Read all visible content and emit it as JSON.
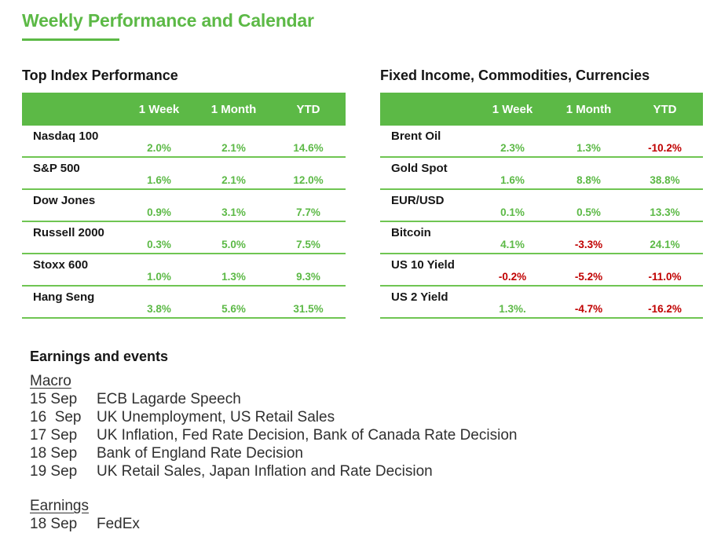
{
  "title": "Weekly Performance and Calendar",
  "colors": {
    "green": "#5CB946",
    "line_green": "#6FC552",
    "red": "#C00000",
    "header_text": "#FFFFFF",
    "text": "#161616"
  },
  "index_table": {
    "title": "Top Index Performance",
    "columns": [
      "1 Week",
      "1 Month",
      "YTD"
    ],
    "rows": [
      {
        "name": "Nasdaq 100",
        "week": "2.0%",
        "month": "2.1%",
        "ytd": "14.6%"
      },
      {
        "name": "S&P 500",
        "week": "1.6%",
        "month": "2.1%",
        "ytd": "12.0%"
      },
      {
        "name": "Dow Jones",
        "week": "0.9%",
        "month": "3.1%",
        "ytd": "7.7%"
      },
      {
        "name": "Russell 2000",
        "week": "0.3%",
        "month": "5.0%",
        "ytd": "7.5%"
      },
      {
        "name": "Stoxx 600",
        "week": "1.0%",
        "month": "1.3%",
        "ytd": "9.3%"
      },
      {
        "name": "Hang Seng",
        "week": "3.8%",
        "month": "5.6%",
        "ytd": "31.5%"
      }
    ]
  },
  "ficc_table": {
    "title": "Fixed Income, Commodities, Currencies",
    "columns": [
      "1 Week",
      "1 Month",
      "YTD"
    ],
    "rows": [
      {
        "name": "Brent Oil",
        "week": "2.3%",
        "month": "1.3%",
        "ytd": "-10.2%"
      },
      {
        "name": "Gold Spot",
        "week": "1.6%",
        "month": "8.8%",
        "ytd": "38.8%"
      },
      {
        "name": "EUR/USD",
        "week": "0.1%",
        "month": "0.5%",
        "ytd": "13.3%"
      },
      {
        "name": "Bitcoin",
        "week": "4.1%",
        "month": "-3.3%",
        "ytd": "24.1%"
      },
      {
        "name": "US 10 Yield",
        "week": "-0.2%",
        "month": "-5.2%",
        "ytd": "-11.0%"
      },
      {
        "name": "US 2 Yield",
        "week": "1.3%.",
        "month": "-4.7%",
        "ytd": "-16.2%"
      }
    ]
  },
  "events": {
    "title": "Earnings and events",
    "groups": [
      {
        "label": "Macro",
        "items": [
          {
            "date": "15 Sep",
            "text": "ECB Lagarde Speech"
          },
          {
            "date": "16  Sep",
            "text": "UK Unemployment, US Retail Sales"
          },
          {
            "date": "17 Sep",
            "text": "UK Inflation, Fed Rate Decision, Bank of Canada Rate Decision"
          },
          {
            "date": "18 Sep",
            "text": "Bank of England Rate Decision"
          },
          {
            "date": "19 Sep",
            "text": "UK Retail Sales, Japan Inflation and Rate Decision"
          }
        ]
      },
      {
        "label": "Earnings",
        "items": [
          {
            "date": "18 Sep",
            "text": "FedEx"
          }
        ]
      }
    ]
  }
}
